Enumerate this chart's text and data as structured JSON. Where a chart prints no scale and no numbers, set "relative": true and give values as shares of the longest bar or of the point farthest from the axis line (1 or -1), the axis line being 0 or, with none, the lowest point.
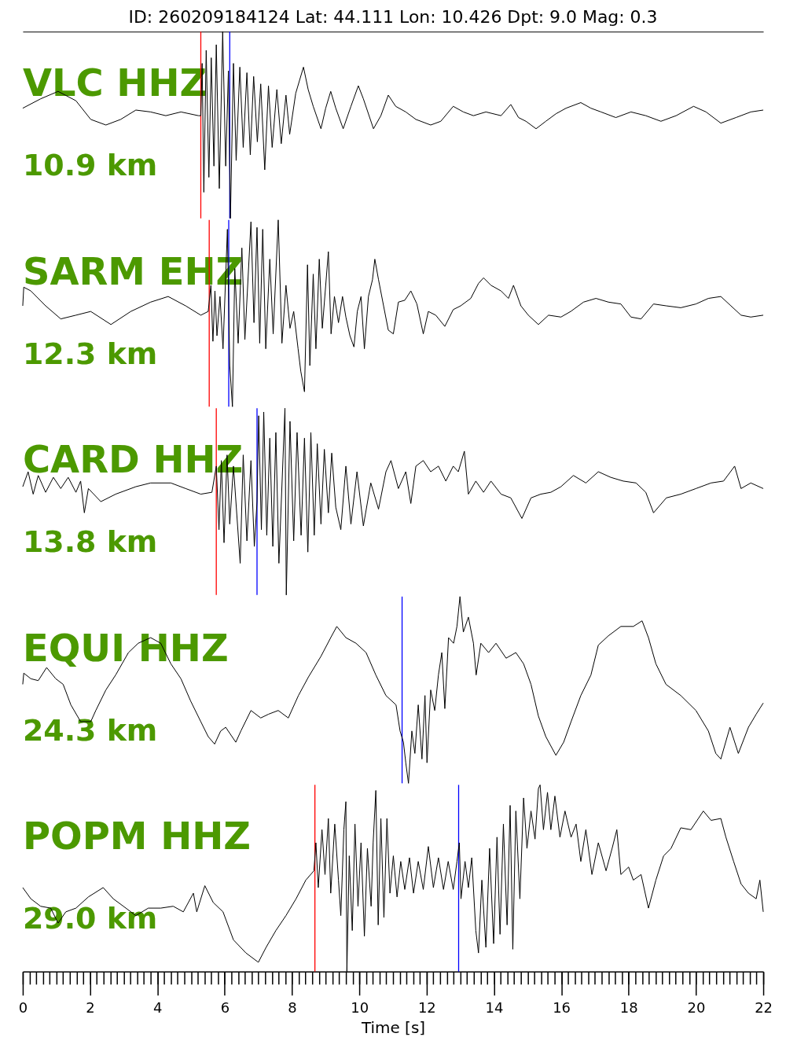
{
  "chart_data": [
    {
      "type": "line",
      "relative": true,
      "title": "ID: 260209184124 Lat:  44.111 Lon:  10.426 Dpt:     9.0 Mag:   0.3",
      "annotations": [
        "VLC HHZ",
        "10.9 km"
      ],
      "color": "#000000",
      "xlim": [
        0,
        22
      ],
      "tick_labels": false,
      "ref_lines": [
        {
          "axis": "x",
          "value": 5.29,
          "color": "#ff0000"
        },
        {
          "axis": "x",
          "value": 6.15,
          "color": "#0000ff"
        }
      ],
      "x": [
        0,
        0.53,
        1.05,
        1.58,
        2.02,
        2.47,
        2.91,
        3.36,
        3.8,
        4.25,
        4.7,
        5.22,
        5.29,
        5.33,
        5.38,
        5.45,
        5.53,
        5.6,
        5.68,
        5.75,
        5.84,
        5.94,
        6.03,
        6.11,
        6.17,
        6.26,
        6.34,
        6.45,
        6.55,
        6.66,
        6.76,
        6.86,
        6.97,
        7.07,
        7.19,
        7.3,
        7.41,
        7.55,
        7.68,
        7.82,
        7.93,
        8.11,
        8.34,
        8.48,
        8.63,
        8.86,
        9,
        9.15,
        9.3,
        9.52,
        9.75,
        9.97,
        10.12,
        10.42,
        10.64,
        10.86,
        11.08,
        11.38,
        11.68,
        12.12,
        12.42,
        12.79,
        13.09,
        13.39,
        13.76,
        14.21,
        14.5,
        14.73,
        14.95,
        15.25,
        15.54,
        15.84,
        16.14,
        16.58,
        16.88,
        17.18,
        17.62,
        18.07,
        18.51,
        18.96,
        19.41,
        19.93,
        20.3,
        20.74,
        21.19,
        21.63,
        22
      ],
      "values": [
        0.59,
        0.64,
        0.68,
        0.63,
        0.53,
        0.5,
        0.53,
        0.58,
        0.57,
        0.55,
        0.57,
        0.55,
        0.55,
        0.83,
        0.14,
        0.9,
        0.22,
        0.86,
        0.28,
        0.93,
        0.16,
        1,
        0.28,
        0.79,
        0,
        0.83,
        0.31,
        0.81,
        0.38,
        0.78,
        0.34,
        0.76,
        0.41,
        0.72,
        0.26,
        0.71,
        0.38,
        0.69,
        0.4,
        0.66,
        0.45,
        0.67,
        0.81,
        0.69,
        0.6,
        0.48,
        0.59,
        0.68,
        0.59,
        0.48,
        0.6,
        0.71,
        0.64,
        0.48,
        0.55,
        0.66,
        0.6,
        0.57,
        0.53,
        0.5,
        0.52,
        0.6,
        0.57,
        0.55,
        0.57,
        0.55,
        0.61,
        0.54,
        0.52,
        0.48,
        0.52,
        0.56,
        0.59,
        0.62,
        0.59,
        0.57,
        0.54,
        0.57,
        0.55,
        0.52,
        0.55,
        0.6,
        0.57,
        0.51,
        0.54,
        0.57,
        0.58
      ]
    },
    {
      "type": "line",
      "relative": true,
      "annotations": [
        "SARM EHZ",
        "12.3 km"
      ],
      "color": "#000000",
      "xlim": [
        0,
        22
      ],
      "tick_labels": false,
      "ref_lines": [
        {
          "axis": "x",
          "value": 5.54,
          "color": "#ff0000"
        },
        {
          "axis": "x",
          "value": 6.12,
          "color": "#0000ff"
        }
      ],
      "x": [
        0,
        0.03,
        0.24,
        0.68,
        1.13,
        1.58,
        2.02,
        2.62,
        3.21,
        3.8,
        4.32,
        4.84,
        5.29,
        5.51,
        5.59,
        5.65,
        5.71,
        5.77,
        5.86,
        5.95,
        6.08,
        6.15,
        6.23,
        6.3,
        6.4,
        6.51,
        6.6,
        6.78,
        6.87,
        6.96,
        7.04,
        7.13,
        7.22,
        7.34,
        7.44,
        7.59,
        7.7,
        7.82,
        7.94,
        8.05,
        8.18,
        8.26,
        8.37,
        8.46,
        8.53,
        8.63,
        8.71,
        8.81,
        8.9,
        9.08,
        9.16,
        9.26,
        9.38,
        9.5,
        9.6,
        9.72,
        9.84,
        9.94,
        10.05,
        10.15,
        10.27,
        10.39,
        10.46,
        10.57,
        10.72,
        10.86,
        11.01,
        11.16,
        11.35,
        11.53,
        11.71,
        11.9,
        12.05,
        12.27,
        12.54,
        12.79,
        13.01,
        13.31,
        13.54,
        13.69,
        13.91,
        14.21,
        14.43,
        14.58,
        14.8,
        15.02,
        15.32,
        15.62,
        15.99,
        16.28,
        16.66,
        17.03,
        17.4,
        17.77,
        18.07,
        18.37,
        18.74,
        19.12,
        19.55,
        20,
        20.37,
        20.74,
        21.04,
        21.34,
        21.63,
        22
      ],
      "values": [
        0.54,
        0.64,
        0.62,
        0.54,
        0.47,
        0.49,
        0.51,
        0.44,
        0.51,
        0.56,
        0.59,
        0.54,
        0.49,
        0.51,
        0.65,
        0.35,
        0.62,
        0.38,
        0.59,
        0.31,
        0.95,
        0.22,
        0,
        0.74,
        0.34,
        0.85,
        0.36,
        0.99,
        0.45,
        0.96,
        0.34,
        0.95,
        0.31,
        0.79,
        0.39,
        1,
        0.34,
        0.65,
        0.42,
        0.51,
        0.31,
        0.19,
        0.08,
        0.76,
        0.22,
        0.71,
        0.31,
        0.79,
        0.42,
        0.83,
        0.39,
        0.59,
        0.45,
        0.59,
        0.48,
        0.38,
        0.32,
        0.51,
        0.59,
        0.31,
        0.59,
        0.68,
        0.79,
        0.68,
        0.54,
        0.41,
        0.39,
        0.56,
        0.57,
        0.62,
        0.55,
        0.39,
        0.51,
        0.49,
        0.43,
        0.52,
        0.54,
        0.58,
        0.66,
        0.69,
        0.65,
        0.62,
        0.58,
        0.65,
        0.54,
        0.49,
        0.44,
        0.49,
        0.48,
        0.51,
        0.56,
        0.58,
        0.56,
        0.55,
        0.48,
        0.47,
        0.55,
        0.54,
        0.53,
        0.55,
        0.58,
        0.59,
        0.54,
        0.49,
        0.48,
        0.49
      ]
    },
    {
      "type": "line",
      "relative": true,
      "annotations": [
        "CARD HHZ",
        "13.8 km"
      ],
      "color": "#000000",
      "xlim": [
        0,
        22
      ],
      "tick_labels": false,
      "ref_lines": [
        {
          "axis": "x",
          "value": 5.75,
          "color": "#ff0000"
        },
        {
          "axis": "x",
          "value": 6.96,
          "color": "#0000ff"
        }
      ],
      "x": [
        0,
        0.16,
        0.31,
        0.46,
        0.68,
        0.91,
        1.13,
        1.35,
        1.58,
        1.72,
        1.83,
        1.95,
        2.32,
        2.76,
        3.36,
        3.8,
        4.4,
        4.84,
        5.29,
        5.62,
        5.75,
        5.83,
        5.9,
        5.98,
        6.07,
        6.15,
        6.26,
        6.46,
        6.55,
        6.66,
        6.78,
        6.88,
        6.96,
        7.01,
        7.09,
        7.16,
        7.25,
        7.34,
        7.43,
        7.52,
        7.61,
        7.79,
        7.83,
        7.94,
        8.05,
        8.15,
        8.27,
        8.37,
        8.47,
        8.56,
        8.66,
        8.75,
        8.86,
        8.96,
        9.08,
        9.18,
        9.3,
        9.45,
        9.6,
        9.75,
        9.93,
        10.12,
        10.34,
        10.57,
        10.79,
        10.94,
        11.16,
        11.38,
        11.53,
        11.68,
        11.9,
        12.12,
        12.35,
        12.57,
        12.79,
        12.94,
        13.12,
        13.24,
        13.46,
        13.69,
        13.91,
        14.21,
        14.5,
        14.83,
        15.1,
        15.39,
        15.69,
        15.99,
        16.36,
        16.73,
        17.1,
        17.47,
        17.84,
        18.22,
        18.51,
        18.74,
        19.12,
        19.55,
        20,
        20.45,
        20.82,
        21.15,
        21.34,
        21.63,
        22
      ],
      "values": [
        0.58,
        0.66,
        0.54,
        0.64,
        0.55,
        0.63,
        0.57,
        0.63,
        0.55,
        0.61,
        0.44,
        0.57,
        0.5,
        0.54,
        0.58,
        0.6,
        0.6,
        0.57,
        0.54,
        0.55,
        0.69,
        0.35,
        0.72,
        0.28,
        0.75,
        0.38,
        0.69,
        0.17,
        0.75,
        0.29,
        0.72,
        0.26,
        0.5,
        0.96,
        0.35,
        0.98,
        0.32,
        0.84,
        0.26,
        0.87,
        0.17,
        1,
        0,
        0.93,
        0.29,
        0.87,
        0.32,
        0.84,
        0.23,
        0.87,
        0.32,
        0.81,
        0.38,
        0.78,
        0.44,
        0.76,
        0.47,
        0.35,
        0.69,
        0.38,
        0.66,
        0.37,
        0.6,
        0.46,
        0.66,
        0.72,
        0.57,
        0.66,
        0.49,
        0.69,
        0.72,
        0.66,
        0.69,
        0.61,
        0.69,
        0.66,
        0.77,
        0.54,
        0.61,
        0.55,
        0.61,
        0.54,
        0.52,
        0.41,
        0.52,
        0.54,
        0.55,
        0.58,
        0.64,
        0.6,
        0.66,
        0.63,
        0.61,
        0.6,
        0.55,
        0.44,
        0.52,
        0.54,
        0.57,
        0.6,
        0.61,
        0.69,
        0.57,
        0.6,
        0.57
      ]
    },
    {
      "type": "line",
      "relative": true,
      "annotations": [
        "EQUI HHZ",
        "24.3 km"
      ],
      "color": "#000000",
      "xlim": [
        0,
        22
      ],
      "tick_labels": false,
      "ref_lines": [
        {
          "axis": "x",
          "value": 11.27,
          "color": "#0000ff"
        }
      ],
      "x": [
        0,
        0.03,
        0.24,
        0.46,
        0.71,
        0.98,
        1.2,
        1.43,
        1.72,
        2.02,
        2.17,
        2.47,
        2.76,
        3.14,
        3.43,
        3.8,
        4.1,
        4.4,
        4.7,
        4.99,
        5.29,
        5.51,
        5.7,
        5.88,
        6.03,
        6.33,
        6.48,
        6.78,
        7.07,
        7.3,
        7.59,
        7.89,
        8.19,
        8.49,
        8.86,
        9.15,
        9.33,
        9.6,
        9.9,
        10.2,
        10.49,
        10.79,
        11.09,
        11.21,
        11.31,
        11.38,
        11.46,
        11.56,
        11.65,
        11.75,
        11.86,
        11.95,
        12.01,
        12.12,
        12.24,
        12.35,
        12.45,
        12.54,
        12.65,
        12.8,
        12.9,
        12.99,
        13.09,
        13.24,
        13.39,
        13.47,
        13.61,
        13.84,
        14.06,
        14.36,
        14.65,
        14.88,
        15.1,
        15.32,
        15.54,
        15.84,
        16.07,
        16.29,
        16.58,
        16.88,
        17.1,
        17.4,
        17.77,
        18.14,
        18.4,
        18.59,
        18.81,
        19.11,
        19.55,
        20,
        20.37,
        20.59,
        20.74,
        21.01,
        21.26,
        21.56,
        21.79,
        22
      ],
      "values": [
        0.53,
        0.59,
        0.56,
        0.55,
        0.62,
        0.56,
        0.53,
        0.42,
        0.33,
        0.33,
        0.39,
        0.5,
        0.58,
        0.7,
        0.75,
        0.78,
        0.75,
        0.64,
        0.56,
        0.44,
        0.33,
        0.25,
        0.21,
        0.28,
        0.3,
        0.22,
        0.28,
        0.39,
        0.35,
        0.37,
        0.39,
        0.35,
        0.47,
        0.57,
        0.68,
        0.78,
        0.84,
        0.78,
        0.75,
        0.7,
        0.58,
        0.47,
        0.42,
        0.28,
        0.22,
        0.11,
        0,
        0.28,
        0.16,
        0.42,
        0.13,
        0.47,
        0.11,
        0.5,
        0.39,
        0.58,
        0.7,
        0.4,
        0.78,
        0.75,
        0.84,
        1,
        0.81,
        0.89,
        0.75,
        0.58,
        0.75,
        0.7,
        0.75,
        0.67,
        0.7,
        0.64,
        0.53,
        0.36,
        0.25,
        0.15,
        0.22,
        0.33,
        0.47,
        0.58,
        0.74,
        0.79,
        0.84,
        0.84,
        0.87,
        0.78,
        0.64,
        0.53,
        0.47,
        0.39,
        0.28,
        0.16,
        0.13,
        0.3,
        0.16,
        0.3,
        0.37,
        0.43
      ]
    },
    {
      "type": "line",
      "relative": true,
      "annotations": [
        "POPM HHZ",
        "29.0 km"
      ],
      "color": "#000000",
      "xlim": [
        0,
        22
      ],
      "tick_labels": "x",
      "xlabel": "Time [s]",
      "ref_lines": [
        {
          "axis": "x",
          "value": 8.68,
          "color": "#ff0000"
        },
        {
          "axis": "x",
          "value": 12.95,
          "color": "#0000ff"
        }
      ],
      "xticks": [
        0,
        {
          "value": 0.2,
          "label": null
        },
        {
          "value": 0.4,
          "label": null
        },
        {
          "value": 0.6,
          "label": null
        },
        {
          "value": 0.8,
          "label": null
        },
        {
          "value": 1,
          "label": null
        },
        {
          "value": 1.2,
          "label": null
        },
        {
          "value": 1.4,
          "label": null
        },
        {
          "value": 1.6,
          "label": null
        },
        {
          "value": 1.8,
          "label": null
        },
        2,
        {
          "value": 2.2,
          "label": null
        },
        {
          "value": 2.4,
          "label": null
        },
        {
          "value": 2.6,
          "label": null
        },
        {
          "value": 2.8,
          "label": null
        },
        {
          "value": 3,
          "label": null
        },
        {
          "value": 3.2,
          "label": null
        },
        {
          "value": 3.4,
          "label": null
        },
        {
          "value": 3.6,
          "label": null
        },
        {
          "value": 3.8,
          "label": null
        },
        4,
        {
          "value": 4.2,
          "label": null
        },
        {
          "value": 4.4,
          "label": null
        },
        {
          "value": 4.6,
          "label": null
        },
        {
          "value": 4.8,
          "label": null
        },
        {
          "value": 5,
          "label": null
        },
        {
          "value": 5.2,
          "label": null
        },
        {
          "value": 5.4,
          "label": null
        },
        {
          "value": 5.6,
          "label": null
        },
        {
          "value": 5.8,
          "label": null
        },
        6,
        {
          "value": 6.2,
          "label": null
        },
        {
          "value": 6.4,
          "label": null
        },
        {
          "value": 6.6,
          "label": null
        },
        {
          "value": 6.8,
          "label": null
        },
        {
          "value": 7,
          "label": null
        },
        {
          "value": 7.2,
          "label": null
        },
        {
          "value": 7.4,
          "label": null
        },
        {
          "value": 7.6,
          "label": null
        },
        {
          "value": 7.8,
          "label": null
        },
        8,
        {
          "value": 8.2,
          "label": null
        },
        {
          "value": 8.4,
          "label": null
        },
        {
          "value": 8.6,
          "label": null
        },
        {
          "value": 8.8,
          "label": null
        },
        {
          "value": 9,
          "label": null
        },
        {
          "value": 9.2,
          "label": null
        },
        {
          "value": 9.4,
          "label": null
        },
        {
          "value": 9.6,
          "label": null
        },
        {
          "value": 9.8,
          "label": null
        },
        10,
        {
          "value": 10.2,
          "label": null
        },
        {
          "value": 10.4,
          "label": null
        },
        {
          "value": 10.6,
          "label": null
        },
        {
          "value": 10.8,
          "label": null
        },
        {
          "value": 11,
          "label": null
        },
        {
          "value": 11.2,
          "label": null
        },
        {
          "value": 11.4,
          "label": null
        },
        {
          "value": 11.6,
          "label": null
        },
        {
          "value": 11.8,
          "label": null
        },
        12,
        {
          "value": 12.2,
          "label": null
        },
        {
          "value": 12.4,
          "label": null
        },
        {
          "value": 12.6,
          "label": null
        },
        {
          "value": 12.8,
          "label": null
        },
        {
          "value": 13,
          "label": null
        },
        {
          "value": 13.2,
          "label": null
        },
        {
          "value": 13.4,
          "label": null
        },
        {
          "value": 13.6,
          "label": null
        },
        {
          "value": 13.8,
          "label": null
        },
        14,
        {
          "value": 14.2,
          "label": null
        },
        {
          "value": 14.4,
          "label": null
        },
        {
          "value": 14.6,
          "label": null
        },
        {
          "value": 14.8,
          "label": null
        },
        {
          "value": 15,
          "label": null
        },
        {
          "value": 15.2,
          "label": null
        },
        {
          "value": 15.4,
          "label": null
        },
        {
          "value": 15.6,
          "label": null
        },
        {
          "value": 15.8,
          "label": null
        },
        16,
        {
          "value": 16.2,
          "label": null
        },
        {
          "value": 16.4,
          "label": null
        },
        {
          "value": 16.6,
          "label": null
        },
        {
          "value": 16.8,
          "label": null
        },
        {
          "value": 17,
          "label": null
        },
        {
          "value": 17.2,
          "label": null
        },
        {
          "value": 17.4,
          "label": null
        },
        {
          "value": 17.6,
          "label": null
        },
        {
          "value": 17.8,
          "label": null
        },
        18,
        {
          "value": 18.2,
          "label": null
        },
        {
          "value": 18.4,
          "label": null
        },
        {
          "value": 18.6,
          "label": null
        },
        {
          "value": 18.8,
          "label": null
        },
        {
          "value": 19,
          "label": null
        },
        {
          "value": 19.2,
          "label": null
        },
        {
          "value": 19.4,
          "label": null
        },
        {
          "value": 19.6,
          "label": null
        },
        {
          "value": 19.8,
          "label": null
        },
        20,
        {
          "value": 20.2,
          "label": null
        },
        {
          "value": 20.4,
          "label": null
        },
        {
          "value": 20.6,
          "label": null
        },
        {
          "value": 20.8,
          "label": null
        },
        {
          "value": 21,
          "label": null
        },
        {
          "value": 21.2,
          "label": null
        },
        {
          "value": 21.4,
          "label": null
        },
        {
          "value": 21.6,
          "label": null
        },
        {
          "value": 21.8,
          "label": null
        },
        22
      ],
      "x": [
        0,
        0.24,
        0.53,
        0.83,
        1.05,
        1.28,
        1.58,
        1.95,
        2.39,
        2.69,
        2.99,
        3.36,
        3.73,
        4.1,
        4.47,
        4.77,
        5.07,
        5.17,
        5.41,
        5.66,
        5.95,
        6.26,
        6.63,
        7,
        7.23,
        7.52,
        7.82,
        8.12,
        8.41,
        8.65,
        8.71,
        8.78,
        8.89,
        8.98,
        9.08,
        9.15,
        9.27,
        9.38,
        9.45,
        9.54,
        9.6,
        9.63,
        9.7,
        9.79,
        9.87,
        9.96,
        10.05,
        10.15,
        10.24,
        10.35,
        10.41,
        10.49,
        10.56,
        10.64,
        10.73,
        10.82,
        10.91,
        11.01,
        11.12,
        11.23,
        11.35,
        11.49,
        11.61,
        11.75,
        11.9,
        12.05,
        12.2,
        12.35,
        12.5,
        12.64,
        12.79,
        12.9,
        12.97,
        13.02,
        13.14,
        13.24,
        13.34,
        13.46,
        13.54,
        13.64,
        13.76,
        13.87,
        13.99,
        14.09,
        14.18,
        14.28,
        14.39,
        14.48,
        14.56,
        14.65,
        14.77,
        14.88,
        14.98,
        15.1,
        15.22,
        15.32,
        15.37,
        15.47,
        15.59,
        15.69,
        15.81,
        15.96,
        16.11,
        16.29,
        16.44,
        16.58,
        16.73,
        16.91,
        17.1,
        17.33,
        17.51,
        17.65,
        17.77,
        18,
        18.14,
        18.37,
        18.59,
        18.81,
        19.04,
        19.26,
        19.55,
        19.85,
        20.22,
        20.45,
        20.74,
        20.89,
        21.12,
        21.34,
        21.56,
        21.79,
        21.9,
        22
      ],
      "values": [
        0.45,
        0.39,
        0.35,
        0.34,
        0.26,
        0.32,
        0.34,
        0.4,
        0.45,
        0.39,
        0.35,
        0.3,
        0.34,
        0.34,
        0.35,
        0.32,
        0.42,
        0.32,
        0.46,
        0.37,
        0.32,
        0.17,
        0.1,
        0.05,
        0.13,
        0.22,
        0.3,
        0.39,
        0.49,
        0.54,
        0.69,
        0.45,
        0.76,
        0.52,
        0.82,
        0.42,
        0.79,
        0.49,
        0.3,
        0.76,
        0.91,
        0,
        0.62,
        0.22,
        0.79,
        0.35,
        0.69,
        0.19,
        0.66,
        0.35,
        0.69,
        0.97,
        0.25,
        0.82,
        0.29,
        0.82,
        0.42,
        0.62,
        0.4,
        0.59,
        0.44,
        0.61,
        0.42,
        0.59,
        0.44,
        0.67,
        0.45,
        0.61,
        0.44,
        0.59,
        0.44,
        0.59,
        0.69,
        0.39,
        0.59,
        0.45,
        0.61,
        0.22,
        0.1,
        0.49,
        0.13,
        0.66,
        0.15,
        0.72,
        0.2,
        0.79,
        0.25,
        0.89,
        0.12,
        0.86,
        0.39,
        0.93,
        0.66,
        0.86,
        0.71,
        0.98,
        1,
        0.76,
        0.96,
        0.76,
        0.94,
        0.72,
        0.86,
        0.72,
        0.79,
        0.59,
        0.76,
        0.52,
        0.69,
        0.54,
        0.66,
        0.76,
        0.52,
        0.56,
        0.49,
        0.52,
        0.34,
        0.49,
        0.62,
        0.66,
        0.77,
        0.76,
        0.86,
        0.81,
        0.82,
        0.72,
        0.59,
        0.47,
        0.42,
        0.39,
        0.49,
        0.32
      ]
    }
  ]
}
